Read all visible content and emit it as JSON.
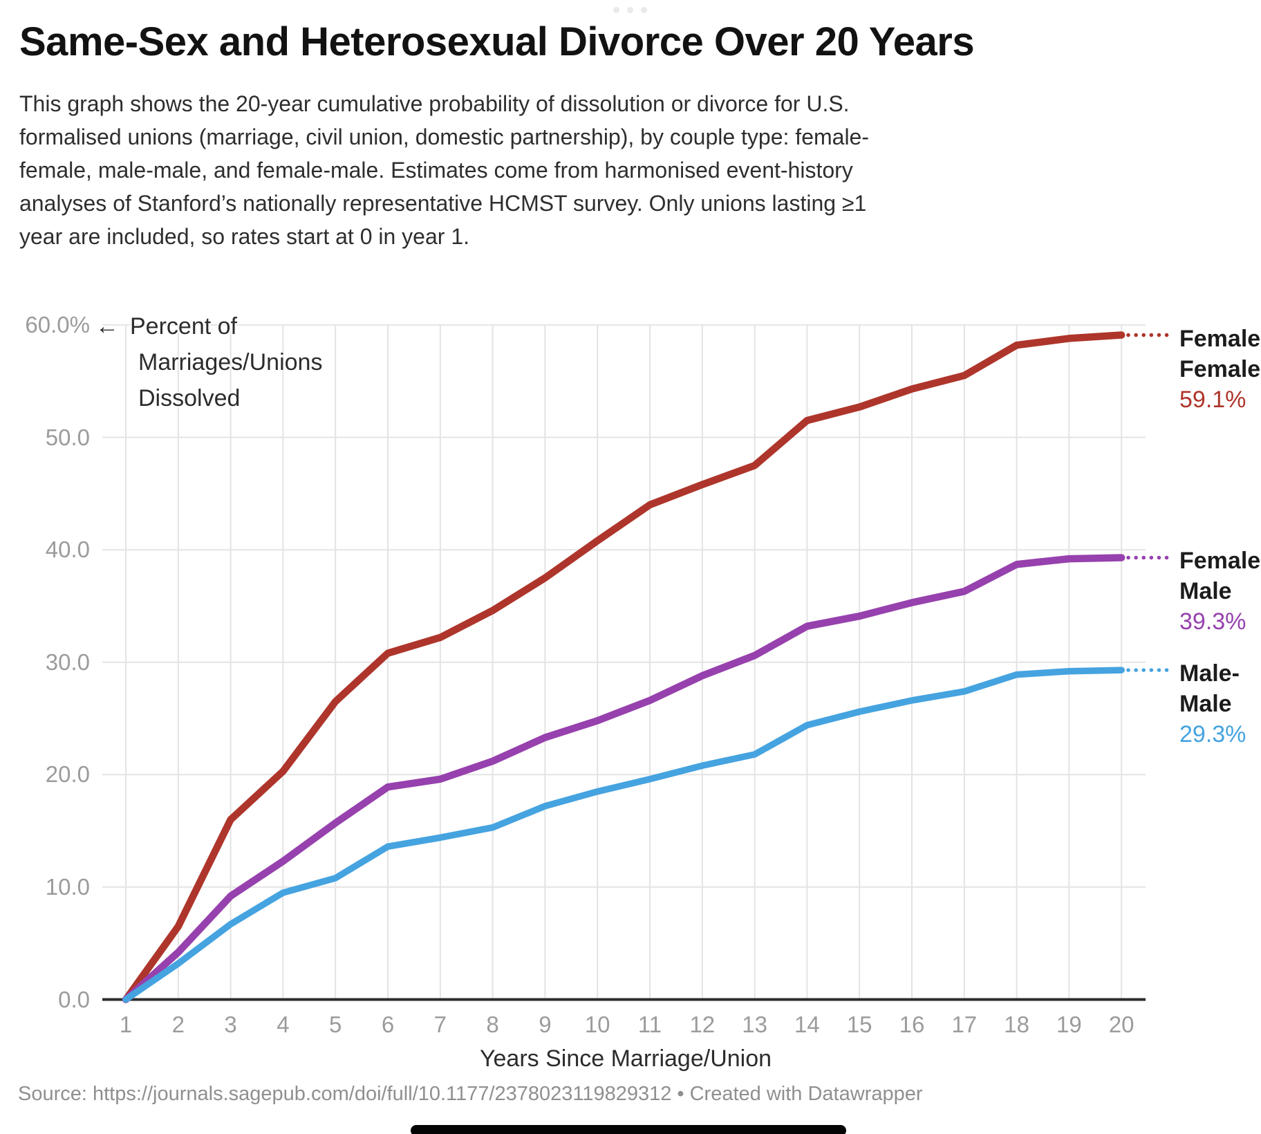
{
  "icons": {
    "more_options": "ellipsis"
  },
  "chart_data": {
    "type": "line",
    "title": "Same-Sex and Heterosexual Divorce Over 20 Years",
    "description_lines": [
      "This graph shows the 20-year cumulative probability of dissolution or divorce for U.S.",
      "formalised unions (marriage, civil union, domestic partnership), by couple type: female-",
      "female, male-male, and female-male. Estimates come from harmonised event-history",
      "analyses of Stanford’s nationally representative HCMST survey. Only unions lasting ≥1",
      "year are included, so rates start at 0 in year 1."
    ],
    "xlabel": "Years Since Marriage/Union",
    "x": [
      1,
      2,
      3,
      4,
      5,
      6,
      7,
      8,
      9,
      10,
      11,
      12,
      13,
      14,
      15,
      16,
      17,
      18,
      19,
      20
    ],
    "x_tick_labels": [
      "1",
      "2",
      "3",
      "4",
      "5",
      "6",
      "7",
      "8",
      "9",
      "10",
      "11",
      "12",
      "13",
      "14",
      "15",
      "16",
      "17",
      "18",
      "19",
      "20"
    ],
    "y_tick_values": [
      0,
      10,
      20,
      30,
      40,
      50,
      60
    ],
    "y_tick_labels": [
      "0.0",
      "10.0",
      "20.0",
      "30.0",
      "40.0",
      "50.0",
      "60.0%"
    ],
    "ylim": [
      0,
      62
    ],
    "grid": true,
    "legend_position": "right-end-labels",
    "y_annotation": {
      "arrow": "←",
      "lines": [
        "Percent of",
        "Marriages/Unions",
        "Dissolved"
      ]
    },
    "series": [
      {
        "name": "Female-Female",
        "label_lines": [
          "Female-",
          "Female"
        ],
        "end_label": "59.1%",
        "end_value": 59.1,
        "color": "#ae352b",
        "values": [
          0,
          6.5,
          16.0,
          20.3,
          26.5,
          30.8,
          32.2,
          34.6,
          37.5,
          40.8,
          44.0,
          45.8,
          47.5,
          51.5,
          52.7,
          54.3,
          55.5,
          58.2,
          58.8,
          59.1
        ]
      },
      {
        "name": "Female-Male",
        "label_lines": [
          "Female-",
          "Male"
        ],
        "end_label": "39.3%",
        "end_value": 39.3,
        "color": "#9641ad",
        "values": [
          0,
          4.2,
          9.2,
          12.3,
          15.7,
          18.9,
          19.6,
          21.2,
          23.3,
          24.8,
          26.6,
          28.8,
          30.6,
          33.2,
          34.1,
          35.3,
          36.3,
          38.7,
          39.2,
          39.3
        ]
      },
      {
        "name": "Male-Male",
        "label_lines": [
          "Male-",
          "Male"
        ],
        "end_label": "29.3%",
        "end_value": 29.3,
        "color": "#45a3e0",
        "values": [
          0,
          3.2,
          6.7,
          9.5,
          10.8,
          13.6,
          14.4,
          15.3,
          17.2,
          18.5,
          19.6,
          20.8,
          21.8,
          24.4,
          25.6,
          26.6,
          27.4,
          28.9,
          29.2,
          29.3
        ]
      }
    ]
  },
  "footer": {
    "source_line": "Source: https://journals.sagepub.com/doi/full/10.1177/2378023119829312 • Created with Datawrapper"
  }
}
